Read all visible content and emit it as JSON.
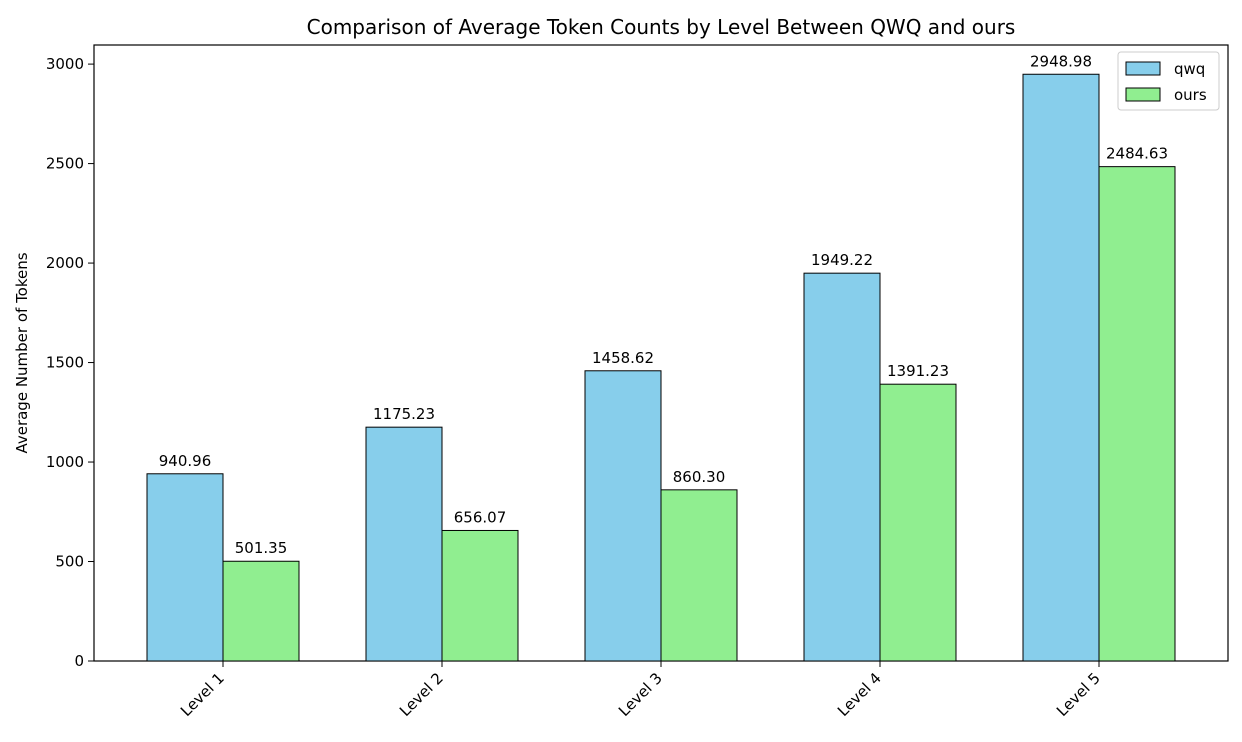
{
  "chart_data": {
    "type": "bar",
    "title": "Comparison of Average Token Counts by Level Between QWQ and ours",
    "xlabel": "",
    "ylabel": "Average Number of Tokens",
    "categories": [
      "Level 1",
      "Level 2",
      "Level 3",
      "Level 4",
      "Level 5"
    ],
    "series": [
      {
        "name": "qwq",
        "color": "#87CEEB",
        "values": [
          940.96,
          1175.23,
          1458.62,
          1949.22,
          2948.98
        ],
        "labels": [
          "940.96",
          "1175.23",
          "1458.62",
          "1949.22",
          "2948.98"
        ]
      },
      {
        "name": "ours",
        "color": "#90EE90",
        "values": [
          501.35,
          656.07,
          860.3,
          1391.23,
          2484.63
        ],
        "labels": [
          "501.35",
          "656.07",
          "860.30",
          "1391.23",
          "2484.63"
        ]
      }
    ],
    "ylim": [
      0,
      3096
    ],
    "yticks": [
      0,
      500,
      1000,
      1500,
      2000,
      2500,
      3000
    ],
    "ytick_labels": [
      "0",
      "500",
      "1000",
      "1500",
      "2000",
      "2500",
      "3000"
    ],
    "grid": false,
    "legend_position": "top-right",
    "xtick_rotation": 45
  }
}
